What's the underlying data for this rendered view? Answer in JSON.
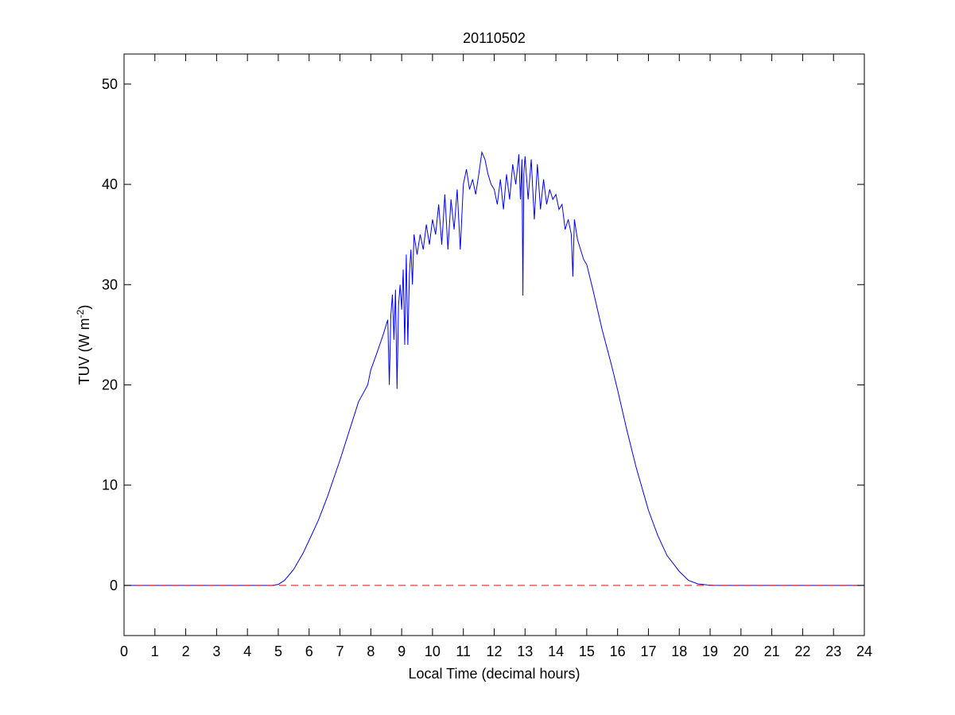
{
  "chart_data": {
    "type": "line",
    "title": "20110502",
    "xlabel": "Local Time (decimal hours)",
    "ylabel": {
      "base": "TUV (W m",
      "superscript": "-2",
      "close": ")"
    },
    "xlim": [
      0,
      24
    ],
    "ylim": [
      -5,
      53
    ],
    "xticks": [
      0,
      1,
      2,
      3,
      4,
      5,
      6,
      7,
      8,
      9,
      10,
      11,
      12,
      13,
      14,
      15,
      16,
      17,
      18,
      19,
      20,
      21,
      22,
      23,
      24
    ],
    "yticks": [
      0,
      10,
      20,
      30,
      40,
      50
    ],
    "grid": false,
    "series": [
      {
        "color": "#0000ff",
        "style": "solid",
        "x": [
          0,
          4.8,
          5.0,
          5.2,
          5.5,
          5.8,
          6.0,
          6.3,
          6.6,
          7.0,
          7.3,
          7.6,
          7.9,
          8.0,
          8.2,
          8.4,
          8.55,
          8.6,
          8.65,
          8.7,
          8.75,
          8.8,
          8.85,
          8.9,
          8.95,
          9.0,
          9.05,
          9.1,
          9.15,
          9.2,
          9.25,
          9.3,
          9.35,
          9.4,
          9.5,
          9.6,
          9.7,
          9.8,
          9.9,
          10.0,
          10.1,
          10.2,
          10.3,
          10.4,
          10.5,
          10.6,
          10.7,
          10.8,
          10.9,
          11.0,
          11.1,
          11.2,
          11.3,
          11.4,
          11.5,
          11.6,
          11.7,
          11.8,
          11.9,
          12.0,
          12.1,
          12.2,
          12.3,
          12.4,
          12.5,
          12.6,
          12.7,
          12.8,
          12.85,
          12.9,
          12.93,
          12.96,
          13.0,
          13.1,
          13.2,
          13.3,
          13.4,
          13.5,
          13.6,
          13.7,
          13.8,
          13.9,
          14.0,
          14.1,
          14.2,
          14.3,
          14.4,
          14.5,
          14.55,
          14.6,
          14.7,
          14.8,
          14.9,
          15.0,
          15.2,
          15.5,
          15.8,
          16.0,
          16.3,
          16.6,
          17.0,
          17.3,
          17.6,
          18.0,
          18.3,
          18.6,
          18.9,
          19.1,
          19.3,
          19.5,
          20.0,
          24
        ],
        "y": [
          0,
          0,
          0.1,
          0.5,
          1.6,
          3.2,
          4.5,
          6.5,
          8.9,
          12.5,
          15.4,
          18.3,
          20.0,
          21.5,
          23.2,
          25.0,
          26.5,
          20.0,
          27.0,
          29.0,
          24.5,
          29.5,
          19.6,
          28.0,
          30.0,
          27.5,
          31.5,
          24.0,
          33.0,
          24.0,
          31.0,
          33.5,
          30.0,
          35.0,
          33.0,
          35.0,
          33.5,
          36.0,
          34.0,
          36.5,
          35.0,
          38.0,
          34.0,
          39.0,
          33.5,
          38.5,
          35.5,
          39.5,
          33.5,
          40.0,
          41.5,
          39.5,
          40.5,
          39.0,
          41.0,
          43.2,
          42.5,
          41.0,
          40.0,
          39.5,
          38.0,
          40.5,
          37.5,
          41.0,
          38.5,
          42.0,
          40.0,
          43.0,
          38.5,
          42.5,
          28.9,
          41.0,
          42.8,
          38.5,
          42.5,
          36.5,
          42.0,
          37.5,
          40.5,
          38.0,
          39.5,
          38.5,
          39.0,
          37.5,
          38.0,
          35.5,
          36.5,
          35.0,
          30.8,
          36.5,
          34.5,
          33.5,
          32.5,
          32.0,
          29.5,
          25.5,
          22.0,
          19.5,
          15.5,
          11.8,
          7.5,
          5.0,
          3.0,
          1.4,
          0.5,
          0.15,
          0.05,
          0.01,
          0,
          0,
          0,
          0
        ]
      },
      {
        "color": "#ff0000",
        "style": "dashed",
        "x": [
          0,
          24
        ],
        "y": [
          0,
          0
        ]
      }
    ]
  }
}
